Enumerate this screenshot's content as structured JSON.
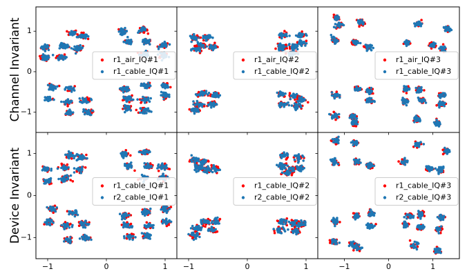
{
  "row_labels": [
    "Channel Invariant",
    "Device Invariant"
  ],
  "colors": {
    "red": "#ff0000",
    "blue": "#1f77b4"
  },
  "chart_data": [
    {
      "type": "scatter",
      "row": 0,
      "col": 0,
      "legend_placement": "right",
      "series": [
        {
          "name": "r1_air_IQ#1",
          "color": "#ff0000"
        },
        {
          "name": "r1_cable_IQ#1",
          "color": "#1f77b4"
        }
      ],
      "xlim": [
        -1.2,
        1.2
      ],
      "ylim": [
        -1.5,
        1.6
      ],
      "xticks": [
        -1,
        0,
        1
      ],
      "yticks": [
        1,
        0,
        -1
      ],
      "clusters": [
        [
          -1.03,
          0.6
        ],
        [
          -1.05,
          0.34
        ],
        [
          -0.72,
          0.63
        ],
        [
          -0.58,
          0.96
        ],
        [
          -0.77,
          0.37
        ],
        [
          -0.42,
          0.88
        ],
        [
          -0.48,
          0.57
        ],
        [
          0.28,
          1.0
        ],
        [
          0.62,
          1.03
        ],
        [
          0.38,
          0.74
        ],
        [
          0.68,
          0.73
        ],
        [
          0.98,
          0.65
        ],
        [
          0.65,
          0.43
        ],
        [
          0.97,
          0.42
        ],
        [
          -0.93,
          -0.38
        ],
        [
          -0.62,
          -0.43
        ],
        [
          -0.98,
          -0.67
        ],
        [
          -0.65,
          -0.75
        ],
        [
          -0.35,
          -0.7
        ],
        [
          -0.65,
          -1.02
        ],
        [
          -0.32,
          -1.0
        ],
        [
          0.31,
          -0.43
        ],
        [
          0.68,
          -0.35
        ],
        [
          1.0,
          -0.35
        ],
        [
          0.37,
          -0.66
        ],
        [
          0.65,
          -0.7
        ],
        [
          1.0,
          -0.58
        ],
        [
          0.37,
          -0.9
        ],
        [
          0.66,
          -0.95
        ]
      ]
    },
    {
      "type": "scatter",
      "row": 0,
      "col": 1,
      "legend_placement": "right",
      "series": [
        {
          "name": "r1_air_IQ#2",
          "color": "#ff0000"
        },
        {
          "name": "r1_cable_IQ#2",
          "color": "#1f77b4"
        }
      ],
      "xlim": [
        -1.2,
        1.2
      ],
      "ylim": [
        -1.5,
        1.6
      ],
      "xticks": [
        -1,
        0,
        1
      ],
      "yticks": [
        1,
        0,
        -1
      ],
      "clusters": [
        [
          -0.9,
          0.84
        ],
        [
          -0.7,
          0.85
        ],
        [
          -0.8,
          0.65
        ],
        [
          -0.6,
          0.62
        ],
        [
          -0.85,
          0.55
        ],
        [
          0.6,
          0.9
        ],
        [
          0.92,
          0.9
        ],
        [
          0.58,
          0.6
        ],
        [
          0.78,
          0.62
        ],
        [
          0.92,
          0.72
        ],
        [
          0.75,
          0.45
        ],
        [
          -0.78,
          -0.55
        ],
        [
          -0.55,
          -0.58
        ],
        [
          -0.82,
          -0.8
        ],
        [
          -0.6,
          -0.8
        ],
        [
          -0.88,
          -0.95
        ],
        [
          0.58,
          -0.55
        ],
        [
          0.8,
          -0.6
        ],
        [
          0.92,
          -0.68
        ],
        [
          0.6,
          -0.8
        ],
        [
          0.85,
          -0.85
        ]
      ]
    },
    {
      "type": "scatter",
      "row": 0,
      "col": 2,
      "legend_placement": "right",
      "series": [
        {
          "name": "r1_air_IQ#3",
          "color": "#ff0000"
        },
        {
          "name": "r1_cable_IQ#3",
          "color": "#1f77b4"
        }
      ],
      "xlim": [
        -1.6,
        1.6
      ],
      "ylim": [
        -1.5,
        1.6
      ],
      "xticks": [
        -1,
        0,
        1
      ],
      "yticks": [
        1,
        0,
        -1
      ],
      "clusters": [
        [
          -1.18,
          1.33
        ],
        [
          -1.12,
          1.15
        ],
        [
          -0.62,
          1.22
        ],
        [
          0.68,
          1.18
        ],
        [
          1.32,
          1.05
        ],
        [
          -1.22,
          0.78
        ],
        [
          -0.75,
          0.72
        ],
        [
          -0.48,
          0.62
        ],
        [
          0.42,
          0.72
        ],
        [
          1.0,
          0.65
        ],
        [
          1.22,
          0.55
        ],
        [
          -1.2,
          -0.58
        ],
        [
          -0.7,
          -0.42
        ],
        [
          -0.42,
          -0.48
        ],
        [
          0.4,
          -0.42
        ],
        [
          0.7,
          -0.45
        ],
        [
          1.2,
          -0.58
        ],
        [
          -1.22,
          -1.08
        ],
        [
          -0.82,
          -1.1
        ],
        [
          -0.42,
          -0.72
        ],
        [
          0.38,
          -0.72
        ],
        [
          0.75,
          -0.72
        ],
        [
          1.2,
          -0.8
        ],
        [
          -0.75,
          -1.25
        ],
        [
          0.65,
          -1.18
        ],
        [
          1.1,
          -1.28
        ]
      ]
    },
    {
      "type": "scatter",
      "row": 1,
      "col": 0,
      "legend_placement": "right",
      "series": [
        {
          "name": "r1_cable_IQ#1",
          "color": "#ff0000"
        },
        {
          "name": "r2_cable_IQ#1",
          "color": "#1f77b4"
        }
      ],
      "xlim": [
        -1.2,
        1.2
      ],
      "ylim": [
        -1.5,
        1.5
      ],
      "xticks": [
        -1,
        0,
        1
      ],
      "yticks": [
        1,
        0,
        -1
      ],
      "clusters": [
        [
          -1.03,
          0.62
        ],
        [
          -1.0,
          0.34
        ],
        [
          -0.72,
          0.68
        ],
        [
          -0.62,
          0.96
        ],
        [
          -0.7,
          0.4
        ],
        [
          -0.42,
          0.9
        ],
        [
          -0.45,
          0.62
        ],
        [
          0.3,
          0.98
        ],
        [
          0.65,
          1.02
        ],
        [
          0.38,
          0.7
        ],
        [
          0.72,
          0.7
        ],
        [
          0.98,
          0.68
        ],
        [
          0.65,
          0.42
        ],
        [
          0.96,
          0.42
        ],
        [
          -0.92,
          -0.32
        ],
        [
          -0.58,
          -0.42
        ],
        [
          -0.98,
          -0.62
        ],
        [
          -0.68,
          -0.72
        ],
        [
          -0.38,
          -0.68
        ],
        [
          -0.65,
          -1.05
        ],
        [
          -0.35,
          -1.0
        ],
        [
          0.32,
          -0.48
        ],
        [
          0.68,
          -0.38
        ],
        [
          1.0,
          -0.32
        ],
        [
          0.35,
          -0.7
        ],
        [
          0.72,
          -0.72
        ],
        [
          1.02,
          -0.62
        ],
        [
          0.4,
          -0.98
        ],
        [
          0.68,
          -0.95
        ]
      ]
    },
    {
      "type": "scatter",
      "row": 1,
      "col": 1,
      "legend_placement": "right",
      "series": [
        {
          "name": "r1_cable_IQ#2",
          "color": "#ff0000"
        },
        {
          "name": "r2_cable_IQ#2",
          "color": "#1f77b4"
        }
      ],
      "xlim": [
        -1.2,
        1.2
      ],
      "ylim": [
        -1.5,
        1.5
      ],
      "xticks": [
        -1,
        0,
        1
      ],
      "yticks": [
        1,
        0,
        -1
      ],
      "clusters": [
        [
          -0.9,
          0.85
        ],
        [
          -0.75,
          0.8
        ],
        [
          -0.7,
          0.62
        ],
        [
          -0.55,
          0.62
        ],
        [
          -0.85,
          0.65
        ],
        [
          0.62,
          0.95
        ],
        [
          0.88,
          0.9
        ],
        [
          0.6,
          0.7
        ],
        [
          0.75,
          0.62
        ],
        [
          0.9,
          0.65
        ],
        [
          0.68,
          0.55
        ],
        [
          -0.72,
          -0.62
        ],
        [
          -0.52,
          -0.62
        ],
        [
          -0.85,
          -0.78
        ],
        [
          -0.6,
          -0.82
        ],
        [
          -0.88,
          -0.95
        ],
        [
          0.6,
          -0.62
        ],
        [
          0.8,
          -0.65
        ],
        [
          0.92,
          -0.68
        ],
        [
          0.55,
          -0.82
        ],
        [
          0.82,
          -0.85
        ]
      ]
    },
    {
      "type": "scatter",
      "row": 1,
      "col": 2,
      "legend_placement": "right",
      "series": [
        {
          "name": "r1_cable_IQ#3",
          "color": "#ff0000"
        },
        {
          "name": "r2_cable_IQ#3",
          "color": "#1f77b4"
        }
      ],
      "xlim": [
        -1.6,
        1.6
      ],
      "ylim": [
        -1.5,
        1.5
      ],
      "xticks": [
        -1,
        0,
        1
      ],
      "yticks": [
        1,
        0,
        -1
      ],
      "clusters": [
        [
          -1.18,
          1.28
        ],
        [
          -0.75,
          1.25
        ],
        [
          0.65,
          1.22
        ],
        [
          1.3,
          1.05
        ],
        [
          -1.22,
          0.8
        ],
        [
          -0.72,
          0.8
        ],
        [
          -0.42,
          0.72
        ],
        [
          0.35,
          0.8
        ],
        [
          0.92,
          0.65
        ],
        [
          1.18,
          0.6
        ],
        [
          -1.2,
          -0.62
        ],
        [
          -0.72,
          -0.48
        ],
        [
          -0.4,
          -0.42
        ],
        [
          0.48,
          -0.48
        ],
        [
          0.72,
          -0.45
        ],
        [
          1.2,
          -0.52
        ],
        [
          -1.22,
          -1.08
        ],
        [
          -0.82,
          -1.15
        ],
        [
          -0.42,
          -0.72
        ],
        [
          0.38,
          -0.7
        ],
        [
          0.72,
          -0.75
        ],
        [
          1.15,
          -0.8
        ],
        [
          -0.7,
          -1.25
        ],
        [
          0.58,
          -1.18
        ],
        [
          1.1,
          -1.3
        ]
      ]
    }
  ]
}
